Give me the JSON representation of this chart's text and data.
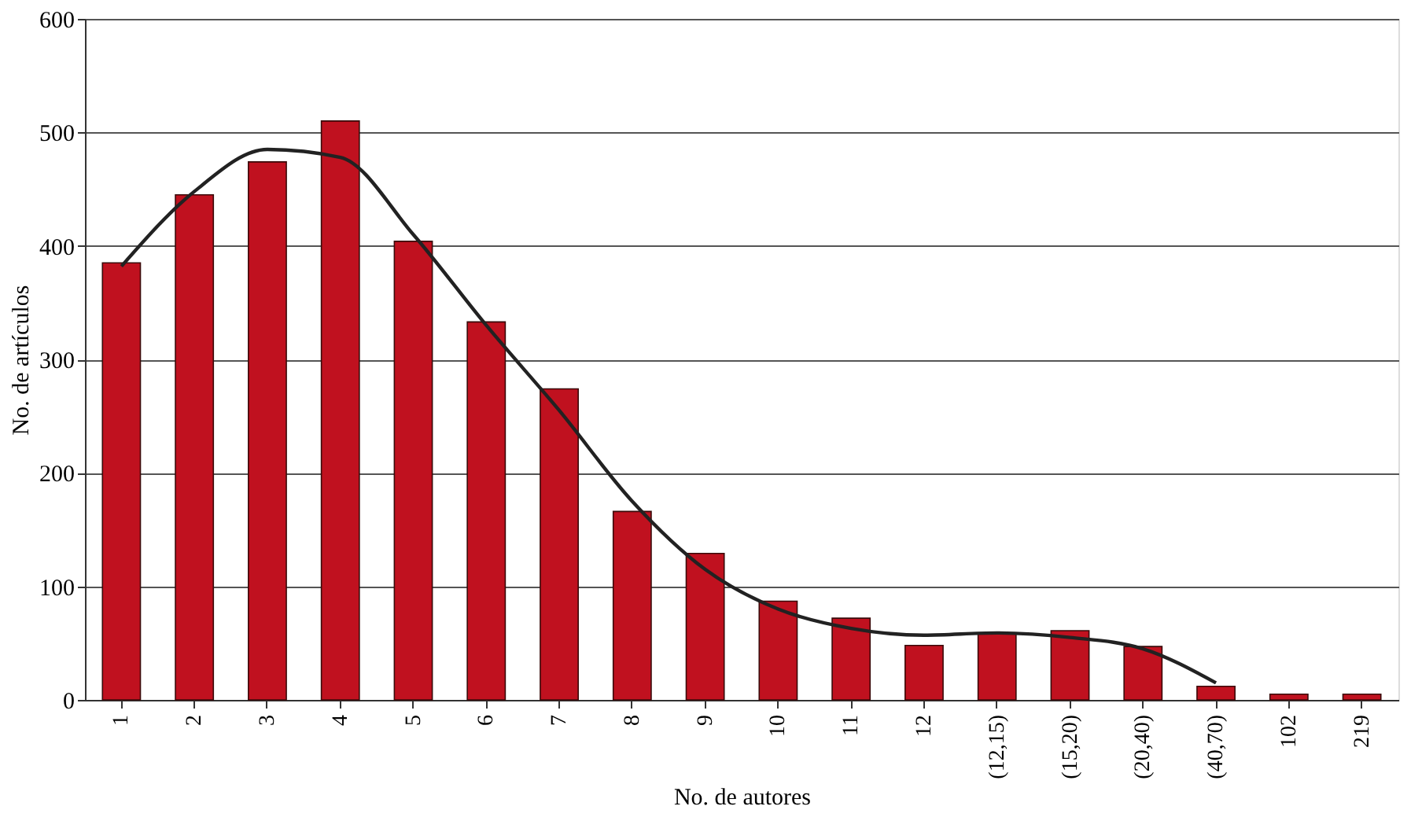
{
  "chart_data": {
    "type": "bar",
    "xlabel": "No. de autores",
    "ylabel": "No. de artículos",
    "categories": [
      "1",
      "2",
      "3",
      "4",
      "5",
      "6",
      "7",
      "8",
      "9",
      "10",
      "11",
      "12",
      "(12,15)",
      "(15,20)",
      "(20,40)",
      "(40,70)",
      "102",
      "219"
    ],
    "ylim": [
      0,
      600
    ],
    "yticks": [
      0,
      100,
      200,
      300,
      400,
      500,
      600
    ],
    "grid": "y",
    "series": [
      {
        "color": "#c0111f",
        "values": [
          385,
          445,
          474,
          510,
          404,
          333,
          274,
          166,
          129,
          87,
          72,
          48,
          59,
          61,
          47,
          12,
          5,
          5
        ]
      },
      {
        "type": "line",
        "color": "#222222",
        "values": [
          382,
          448,
          485,
          478,
          410,
          330,
          255,
          175,
          115,
          80,
          63,
          57,
          59,
          55,
          45,
          15,
          null,
          null
        ]
      }
    ]
  }
}
